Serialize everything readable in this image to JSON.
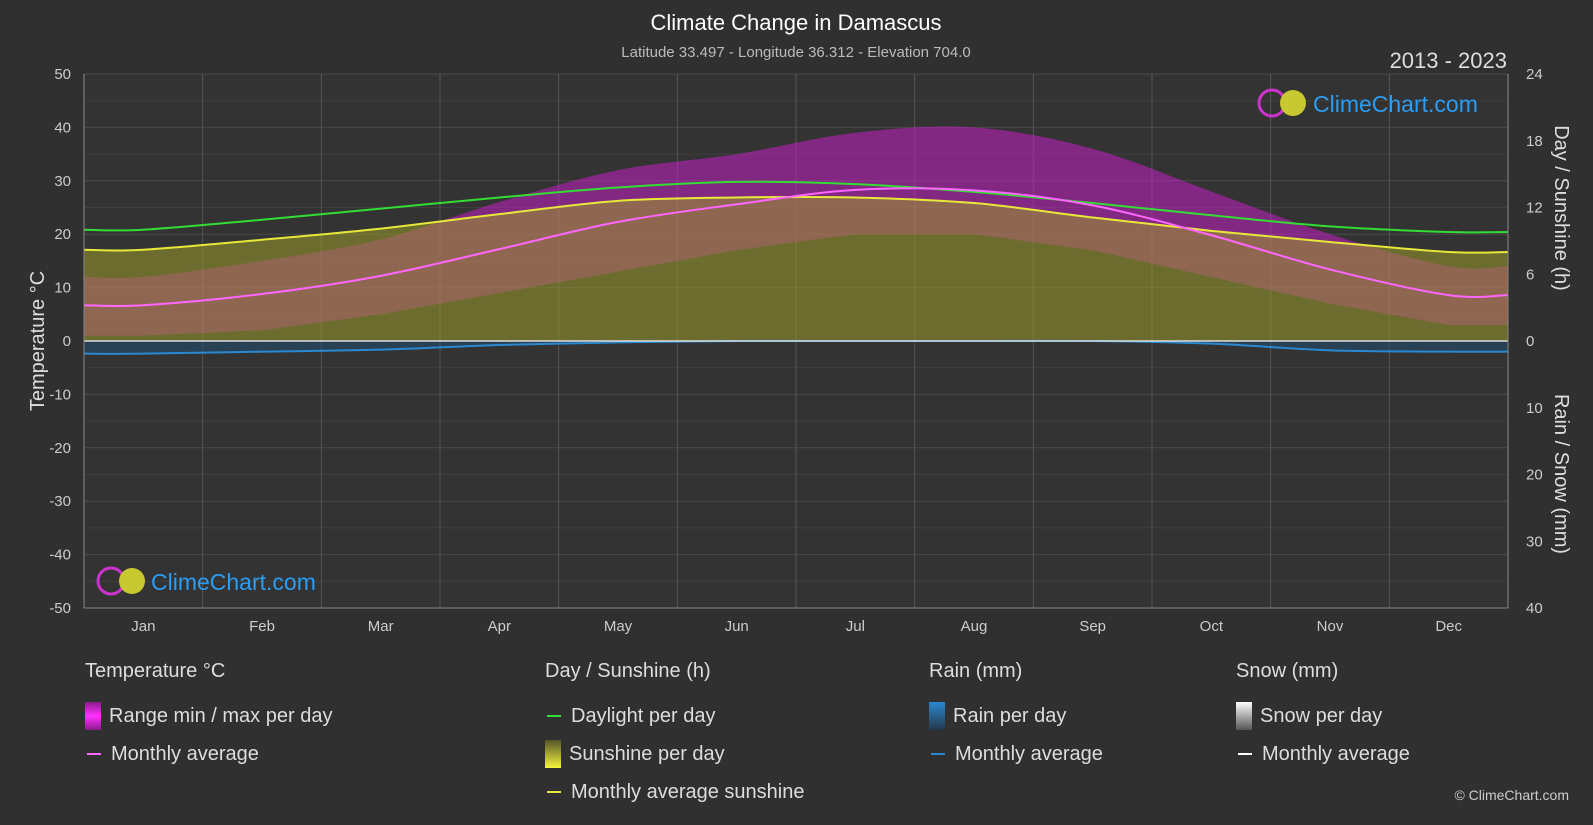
{
  "header": {
    "title": "Climate Change in Damascus",
    "subtitle": "Latitude 33.497 - Longitude 36.312 - Elevation 704.0",
    "period": "2013 - 2023"
  },
  "watermark": "ClimeChart.com",
  "copyright": "© ClimeChart.com",
  "colors": {
    "background": "#303030",
    "temp_range": "#d21ed2",
    "temp_avg": "#ff66ff",
    "daylight": "#33dd33",
    "sunshine_fill": "#9a9a2a",
    "sunshine_avg": "#e8e83a",
    "rain": "#2a88d0",
    "snow": "#ffffff",
    "brand_blue": "#2a9df4"
  },
  "legend": {
    "temperature": {
      "title": "Temperature °C",
      "range_label": "Range min / max per day",
      "avg_label": "Monthly average"
    },
    "sunshine": {
      "title": "Day / Sunshine (h)",
      "daylight_label": "Daylight per day",
      "sunshine_label": "Sunshine per day",
      "avg_label": "Monthly average sunshine"
    },
    "rain": {
      "title": "Rain (mm)",
      "per_day_label": "Rain per day",
      "avg_label": "Monthly average"
    },
    "snow": {
      "title": "Snow (mm)",
      "per_day_label": "Snow per day",
      "avg_label": "Monthly average"
    }
  },
  "chart_data": {
    "type": "area",
    "categories": [
      "Jan",
      "Feb",
      "Mar",
      "Apr",
      "May",
      "Jun",
      "Jul",
      "Aug",
      "Sep",
      "Oct",
      "Nov",
      "Dec"
    ],
    "left_axis": {
      "label": "Temperature °C",
      "ticks": [
        50,
        40,
        30,
        20,
        10,
        0,
        -10,
        -20,
        -30,
        -40,
        -50
      ],
      "range": [
        -50,
        50
      ]
    },
    "right_axis_top": {
      "label": "Day / Sunshine (h)",
      "ticks": [
        24,
        18,
        12,
        6,
        0
      ],
      "range": [
        0,
        24
      ]
    },
    "right_axis_bottom": {
      "label": "Rain / Snow (mm)",
      "ticks": [
        0,
        10,
        20,
        30,
        40
      ],
      "range": [
        0,
        40
      ]
    },
    "series": [
      {
        "name": "Daylight per day",
        "axis": "hours",
        "values": [
          10.0,
          10.9,
          11.9,
          12.9,
          13.8,
          14.3,
          14.1,
          13.4,
          12.4,
          11.3,
          10.3,
          9.8
        ]
      },
      {
        "name": "Monthly average sunshine",
        "axis": "hours",
        "values": [
          8.2,
          9.1,
          10.1,
          11.4,
          12.6,
          12.9,
          12.9,
          12.4,
          11.1,
          9.9,
          8.9,
          8.0
        ]
      },
      {
        "name": "Monthly average",
        "axis": "temperature",
        "values": [
          6.7,
          8.8,
          12.2,
          17.2,
          22.3,
          25.6,
          28.3,
          28.2,
          25.4,
          19.8,
          13.4,
          8.6
        ]
      },
      {
        "name": "Range min / max per day (max)",
        "axis": "temperature",
        "values": [
          12,
          15,
          19,
          26,
          32,
          35,
          39,
          40,
          36,
          28,
          20,
          14
        ]
      },
      {
        "name": "Range min / max per day (min)",
        "axis": "temperature",
        "values": [
          1,
          2,
          5,
          9,
          13,
          17,
          20,
          20,
          17,
          12,
          7,
          3
        ]
      },
      {
        "name": "Rain monthly average",
        "axis": "rain_mm",
        "values": [
          1.9,
          1.6,
          1.3,
          0.6,
          0.2,
          0.0,
          0.0,
          0.0,
          0.0,
          0.4,
          1.4,
          1.6
        ]
      },
      {
        "name": "Snow monthly average",
        "axis": "rain_mm",
        "values": [
          0,
          0,
          0,
          0,
          0,
          0,
          0,
          0,
          0,
          0,
          0,
          0
        ]
      }
    ]
  }
}
